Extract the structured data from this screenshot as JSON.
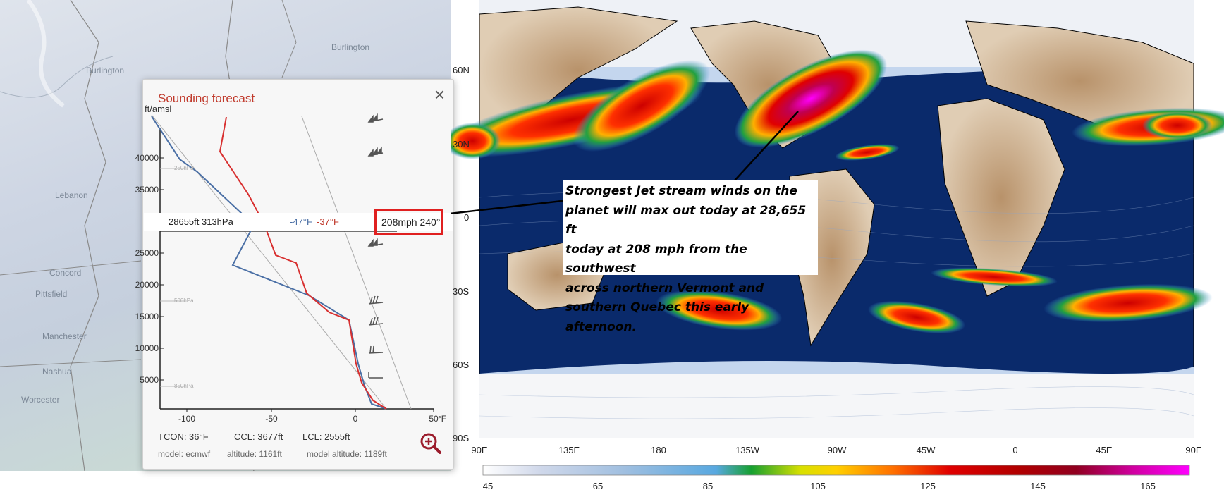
{
  "left_map": {
    "cities": [
      "Burlington",
      "Burlington",
      "Lebanon",
      "Concord",
      "Manchester",
      "Nashua",
      "Worcester",
      "Pittsfield"
    ]
  },
  "sounding": {
    "title": "Sounding forecast",
    "close_icon": "close-icon",
    "y_axis_label": "ft/amsl",
    "y_ticks": [
      "40000",
      "35000",
      "25000",
      "20000",
      "15000",
      "10000",
      "5000"
    ],
    "pressure_labels": [
      "250hPa",
      "500hPa",
      "850hPa"
    ],
    "x_ticks": [
      "-100",
      "-50",
      "0",
      "50"
    ],
    "x_unit": "°F",
    "hover": {
      "altitude": "28655ft 313hPa",
      "temp_c": "-47°F",
      "temp_f": "-37°F",
      "wind": "208mph 240°"
    },
    "footer": {
      "tcon": "TCON: 36°F",
      "ccl": "CCL: 3677ft",
      "lcl": "LCL: 2555ft",
      "model": "model: ecmwf",
      "altitude": "altitude: 1161ft",
      "model_altitude": "model altitude: 1189ft"
    },
    "zoom_icon": "zoom-in-icon"
  },
  "world_map": {
    "lat_labels": [
      "60N",
      "30N",
      "0",
      "30S",
      "60S",
      "90S"
    ],
    "lon_labels": [
      "90E",
      "135E",
      "180",
      "135W",
      "90W",
      "45W",
      "0",
      "45E",
      "90E"
    ],
    "colorbar_ticks": [
      "45",
      "65",
      "85",
      "105",
      "125",
      "145",
      "165"
    ],
    "colors": {
      "ocean": "#0a2a6b",
      "jet_fast": "#d40000",
      "jet_max": "#e600e6"
    }
  },
  "annotation": {
    "text": "Strongest Jet stream winds on the\nplanet will max out today at 28,655 ft\ntoday at 208 mph from the southwest\nacross northern Vermont and\nsouthern Quebec this early afternoon."
  }
}
